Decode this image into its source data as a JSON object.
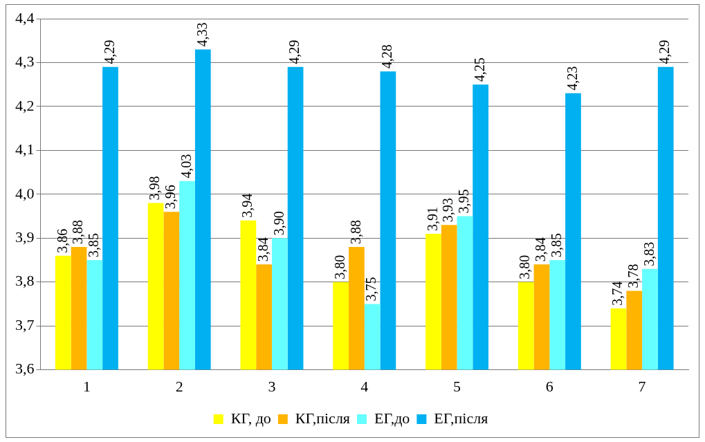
{
  "chart_data": {
    "type": "bar",
    "categories": [
      "1",
      "2",
      "3",
      "4",
      "5",
      "6",
      "7"
    ],
    "series": [
      {
        "name": "КГ, до",
        "color": "#ffff00",
        "values": [
          3.86,
          3.98,
          3.94,
          3.8,
          3.91,
          3.8,
          3.74
        ],
        "value_labels": [
          "3,86",
          "3,98",
          "3,94",
          "3,80",
          "3,91",
          "3,80",
          "3,74"
        ]
      },
      {
        "name": "КГ,після",
        "color": "#ffb400",
        "values": [
          3.88,
          3.96,
          3.84,
          3.88,
          3.93,
          3.84,
          3.78
        ],
        "value_labels": [
          "3,88",
          "3,96",
          "3,84",
          "3,88",
          "3,93",
          "3,84",
          "3,78"
        ]
      },
      {
        "name": "ЕГ,до",
        "color": "#66ffff",
        "values": [
          3.85,
          4.03,
          3.9,
          3.75,
          3.95,
          3.85,
          3.83
        ],
        "value_labels": [
          "3,85",
          "4,03",
          "3,90",
          "3,75",
          "3,95",
          "3,85",
          "3,83"
        ]
      },
      {
        "name": "ЕГ,після",
        "color": "#00b0f0",
        "values": [
          4.29,
          4.33,
          4.29,
          4.28,
          4.25,
          4.23,
          4.29
        ],
        "value_labels": [
          "4,29",
          "4,33",
          "4,29",
          "4,28",
          "4,25",
          "4,23",
          "4,29"
        ]
      }
    ],
    "ylim": [
      3.6,
      4.4
    ],
    "yticks": [
      {
        "value": 3.6,
        "label": "3,6"
      },
      {
        "value": 3.7,
        "label": "3,7"
      },
      {
        "value": 3.8,
        "label": "3,8"
      },
      {
        "value": 3.9,
        "label": "3,9"
      },
      {
        "value": 4.0,
        "label": "4,0"
      },
      {
        "value": 4.1,
        "label": "4,1"
      },
      {
        "value": 4.2,
        "label": "4,2"
      },
      {
        "value": 4.3,
        "label": "4,3"
      },
      {
        "value": 4.4,
        "label": "4,4"
      }
    ],
    "grid": "y",
    "legend": "bottom"
  }
}
